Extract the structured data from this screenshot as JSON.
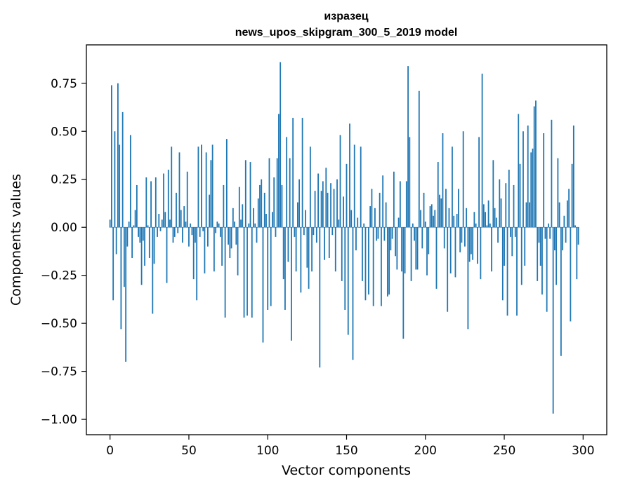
{
  "chart_data": {
    "type": "bar",
    "title": "изразец",
    "subtitle": "news_upos_skipgram_300_5_2019 model",
    "xlabel": "Vector components",
    "ylabel": "Components values",
    "xlim": [
      -15,
      315
    ],
    "ylim": [
      -1.08,
      0.95
    ],
    "x_ticks": [
      0,
      50,
      100,
      150,
      200,
      250,
      300
    ],
    "y_ticks": [
      -1.0,
      -0.75,
      -0.5,
      -0.25,
      0.0,
      0.25,
      0.5,
      0.75
    ],
    "x_tick_labels": [
      "0",
      "50",
      "100",
      "150",
      "200",
      "250",
      "300"
    ],
    "y_tick_labels": [
      "−1.00",
      "−0.75",
      "−0.50",
      "−0.25",
      "0.00",
      "0.25",
      "0.50",
      "0.75"
    ],
    "bar_color": "#1f77b4",
    "grid": false,
    "legend": "none",
    "values": [
      0.04,
      0.74,
      -0.38,
      0.5,
      -0.14,
      0.75,
      0.43,
      -0.53,
      0.6,
      -0.31,
      -0.7,
      -0.1,
      0.03,
      0.48,
      -0.16,
      0.01,
      0.09,
      0.22,
      -0.05,
      -0.08,
      -0.3,
      -0.07,
      -0.2,
      0.26,
      0.01,
      -0.16,
      0.24,
      -0.45,
      -0.19,
      0.26,
      -0.05,
      0.07,
      -0.02,
      0.04,
      0.28,
      0.08,
      -0.29,
      0.3,
      0.04,
      0.42,
      -0.08,
      -0.05,
      0.18,
      -0.03,
      0.39,
      0.09,
      -0.08,
      0.11,
      0.03,
      0.29,
      -0.1,
      0.02,
      -0.04,
      -0.27,
      -0.08,
      -0.38,
      0.42,
      -0.05,
      0.43,
      -0.02,
      -0.24,
      0.39,
      -0.1,
      0.17,
      0.35,
      0.43,
      -0.23,
      -0.03,
      0.03,
      0.02,
      -0.05,
      -0.2,
      0.22,
      -0.47,
      0.46,
      -0.09,
      -0.16,
      -0.11,
      0.1,
      0.03,
      -0.09,
      -0.25,
      0.21,
      0.04,
      0.12,
      -0.47,
      0.35,
      -0.46,
      0.02,
      0.34,
      -0.47,
      0.1,
      0.02,
      -0.08,
      0.15,
      0.22,
      0.25,
      -0.6,
      0.18,
      0.07,
      -0.43,
      0.36,
      -0.41,
      0.08,
      0.26,
      -0.05,
      0.36,
      0.59,
      0.86,
      0.22,
      -0.27,
      -0.43,
      0.47,
      -0.18,
      0.36,
      -0.59,
      0.57,
      -0.05,
      -0.23,
      0.13,
      0.25,
      -0.34,
      0.57,
      -0.04,
      0.09,
      -0.21,
      -0.32,
      0.42,
      -0.23,
      -0.04,
      0.19,
      -0.08,
      0.28,
      -0.73,
      0.19,
      0.24,
      -0.17,
      0.31,
      0.18,
      -0.16,
      0.23,
      -0.04,
      0.2,
      -0.23,
      0.25,
      0.04,
      0.48,
      -0.28,
      0.16,
      -0.43,
      0.33,
      -0.56,
      0.54,
      0.09,
      -0.69,
      0.43,
      -0.12,
      0.05,
      0.0,
      0.42,
      -0.28,
      0.02,
      -0.38,
      0.0,
      -0.35,
      0.11,
      0.2,
      -0.41,
      0.1,
      -0.07,
      -0.06,
      0.18,
      -0.41,
      0.27,
      -0.07,
      0.13,
      -0.36,
      -0.35,
      -0.12,
      -0.06,
      0.29,
      -0.15,
      -0.22,
      0.05,
      0.24,
      -0.23,
      -0.58,
      -0.24,
      0.24,
      0.84,
      0.47,
      -0.28,
      0.02,
      -0.07,
      -0.22,
      -0.22,
      0.71,
      0.09,
      -0.11,
      0.18,
      0.03,
      -0.25,
      -0.14,
      0.11,
      0.12,
      0.06,
      0.09,
      -0.32,
      0.34,
      0.17,
      0.15,
      0.49,
      -0.11,
      0.2,
      -0.44,
      0.1,
      -0.24,
      0.42,
      0.06,
      -0.26,
      0.07,
      0.2,
      -0.13,
      -0.08,
      0.5,
      -0.1,
      0.1,
      -0.53,
      -0.18,
      -0.14,
      -0.17,
      0.08,
      0.02,
      -0.19,
      0.47,
      -0.27,
      0.8,
      0.12,
      0.08,
      0.01,
      0.14,
      0.02,
      -0.23,
      0.35,
      0.1,
      0.05,
      -0.08,
      0.25,
      0.15,
      -0.38,
      -0.2,
      0.23,
      -0.46,
      0.3,
      -0.05,
      -0.15,
      0.22,
      -0.05,
      -0.46,
      0.59,
      0.33,
      -0.3,
      0.5,
      -0.2,
      0.13,
      0.53,
      0.13,
      0.39,
      0.41,
      0.63,
      0.66,
      -0.28,
      -0.08,
      -0.2,
      -0.35,
      0.49,
      -0.06,
      -0.44,
      0.02,
      -0.06,
      0.56,
      -0.97,
      -0.12,
      -0.3,
      0.36,
      0.13,
      -0.67,
      -0.12,
      0.06,
      -0.08,
      0.14,
      0.2,
      -0.49,
      0.33,
      0.53,
      0.01,
      -0.27,
      -0.09
    ]
  }
}
